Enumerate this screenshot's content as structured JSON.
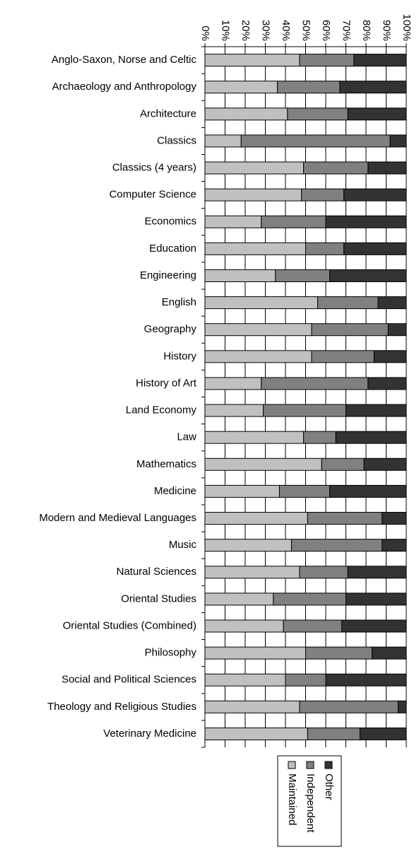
{
  "chart_data": {
    "type": "bar",
    "orientation": "horizontal",
    "stacked": "percent",
    "categories": [
      "Anglo-Saxon, Norse and Celtic",
      "Archaeology and Anthropology",
      "Architecture",
      "Classics",
      "Classics (4 years)",
      "Computer Science",
      "Economics",
      "Education",
      "Engineering",
      "English",
      "Geography",
      "History",
      "History of Art",
      "Land Economy",
      "Law",
      "Mathematics",
      "Medicine",
      "Modern and Medieval Languages",
      "Music",
      "Natural Sciences",
      "Oriental Studies",
      "Oriental Studies (Combined)",
      "Philosophy",
      "Social and Political Sciences",
      "Theology and Religious Studies",
      "Veterinary Medicine"
    ],
    "series": [
      {
        "name": "Maintained",
        "color": "#c0c0c0",
        "values": [
          47,
          36,
          41,
          18,
          49,
          48,
          28,
          50,
          35,
          56,
          53,
          53,
          28,
          29,
          49,
          58,
          37,
          51,
          43,
          47,
          34,
          39,
          50,
          40,
          47,
          51
        ]
      },
      {
        "name": "Independent",
        "color": "#808080",
        "values": [
          27,
          31,
          30,
          74,
          32,
          21,
          32,
          19,
          27,
          30,
          38,
          31,
          53,
          41,
          16,
          21,
          25,
          37,
          45,
          24,
          36,
          29,
          33,
          20,
          49,
          26
        ]
      },
      {
        "name": "Other",
        "color": "#333333",
        "values": [
          26,
          33,
          29,
          8,
          19,
          31,
          40,
          31,
          38,
          14,
          9,
          16,
          19,
          30,
          35,
          21,
          38,
          12,
          12,
          29,
          30,
          32,
          17,
          40,
          4,
          23
        ]
      }
    ],
    "value_axis": {
      "range": [
        0,
        100
      ],
      "ticks": [
        "0%",
        "10%",
        "20%",
        "30%",
        "40%",
        "50%",
        "60%",
        "70%",
        "80%",
        "90%",
        "100%"
      ],
      "label_rotation": "90deg"
    },
    "title": "",
    "xlabel": "",
    "ylabel": "",
    "grid": true,
    "legend": {
      "placement": "bottom",
      "rotated": true,
      "order": [
        "Other",
        "Independent",
        "Maintained"
      ]
    }
  }
}
